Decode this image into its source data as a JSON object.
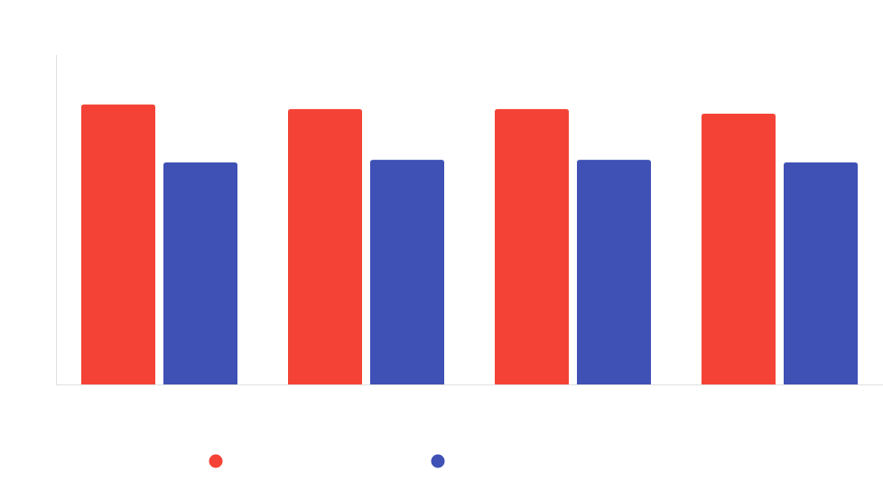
{
  "chart_data": {
    "type": "bar",
    "title": "",
    "xlabel": "",
    "ylabel": "",
    "categories": [
      "",
      "",
      "",
      ""
    ],
    "ylim": [
      0,
      100
    ],
    "grid": false,
    "legend_placement": "bottom-left",
    "series": [
      {
        "name": "",
        "color": "#f44336",
        "values": [
          85,
          83.6,
          83.6,
          82.2
        ]
      },
      {
        "name": "",
        "color": "#3f51b5",
        "values": [
          67.4,
          68.2,
          68.2,
          67.4
        ]
      }
    ]
  }
}
